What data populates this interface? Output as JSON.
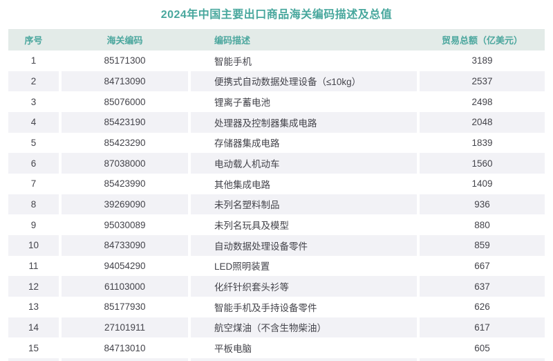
{
  "title": "2024年中国主要出口商品海关编码描述及总值",
  "colors": {
    "accent_teal": "#48A79D",
    "header_bg": "#E3EBE8",
    "alt_row_bg": "#F2F2F6",
    "body_text": "#43434A"
  },
  "table": {
    "columns": [
      {
        "label": "序号"
      },
      {
        "label": "海关编码"
      },
      {
        "label": "编码描述"
      },
      {
        "label": "贸易总额（亿美元）"
      }
    ],
    "rows": [
      {
        "index": "1",
        "code": "85171300",
        "desc": "智能手机",
        "value": "3189"
      },
      {
        "index": "2",
        "code": "84713090",
        "desc": "便携式自动数据处理设备（≤10kg）",
        "value": "2537"
      },
      {
        "index": "3",
        "code": "85076000",
        "desc": "锂离子蓄电池",
        "value": "2498"
      },
      {
        "index": "4",
        "code": "85423190",
        "desc": "处理器及控制器集成电路",
        "value": "2048"
      },
      {
        "index": "5",
        "code": "85423290",
        "desc": "存储器集成电路",
        "value": "1839"
      },
      {
        "index": "6",
        "code": "87038000",
        "desc": "电动载人机动车",
        "value": "1560"
      },
      {
        "index": "7",
        "code": "85423990",
        "desc": "其他集成电路",
        "value": "1409"
      },
      {
        "index": "8",
        "code": "39269090",
        "desc": "未列名塑料制品",
        "value": "936"
      },
      {
        "index": "9",
        "code": "95030089",
        "desc": "未列名玩具及模型",
        "value": "880"
      },
      {
        "index": "10",
        "code": "84733090",
        "desc": "自动数据处理设备零件",
        "value": "859"
      },
      {
        "index": "11",
        "code": "94054290",
        "desc": "LED照明装置",
        "value": "667"
      },
      {
        "index": "12",
        "code": "61103000",
        "desc": "化纤针织套头衫等",
        "value": "637"
      },
      {
        "index": "13",
        "code": "85177930",
        "desc": "智能手机及手持设备零件",
        "value": "626"
      },
      {
        "index": "14",
        "code": "27101911",
        "desc": "航空煤油（不含生物柴油）",
        "value": "617"
      },
      {
        "index": "15",
        "code": "84713010",
        "desc": "平板电脑",
        "value": "605"
      }
    ]
  }
}
